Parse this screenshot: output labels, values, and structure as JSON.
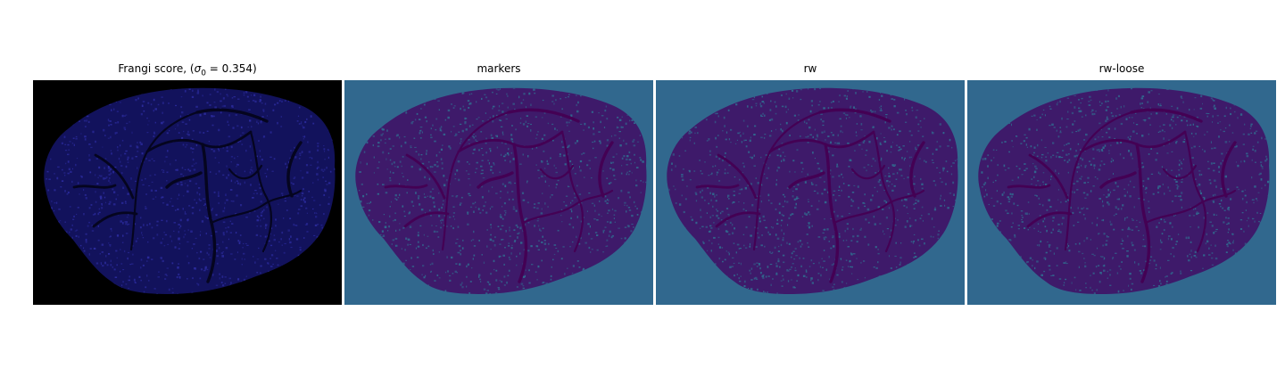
{
  "figure": {
    "panels": [
      {
        "id": "frangi",
        "title_prefix": "Frangi score, (",
        "title_sigma": "σ",
        "title_sub": "0",
        "title_suffix": " = 0.354)",
        "background_color": "#000000",
        "blob_color": "#12125c",
        "vessel_color": "#05051f",
        "noise_color": "#2a2a9a"
      },
      {
        "id": "markers",
        "title": "markers",
        "background_color": "#31688e",
        "blob_color": "#3e1a6a",
        "vessel_color": "#440154",
        "noise_color": "#31688e"
      },
      {
        "id": "rw",
        "title": "rw",
        "background_color": "#31688e",
        "blob_color": "#3e1a6a",
        "vessel_color": "#440154",
        "noise_color": "#31688e"
      },
      {
        "id": "rw-loose",
        "title": "rw-loose",
        "background_color": "#31688e",
        "blob_color": "#3e1a6a",
        "vessel_color": "#440154",
        "noise_color": "#31688e"
      }
    ]
  }
}
